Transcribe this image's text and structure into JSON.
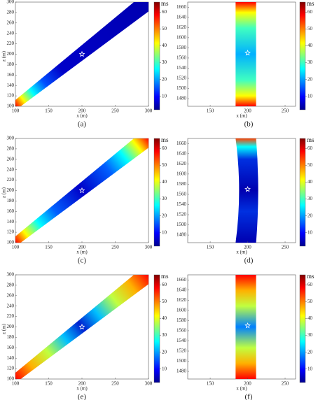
{
  "chart_data": [
    {
      "type": "heatmap",
      "caption": "(a)",
      "xlabel": "x (m)",
      "ylabel": "z (m)",
      "xlim": [
        100,
        300
      ],
      "ylim": [
        100,
        300
      ],
      "xticks": [
        100,
        150,
        200,
        250,
        300
      ],
      "yticks": [
        100,
        120,
        140,
        160,
        180,
        200,
        220,
        240,
        260,
        280,
        300
      ],
      "source": [
        200,
        200
      ],
      "clabel": "ms",
      "clim": [
        2,
        66
      ],
      "cticks": [
        10,
        20,
        30,
        40,
        50,
        60
      ]
    },
    {
      "type": "heatmap",
      "caption": "(b)",
      "xlabel": "x (m)",
      "xlim": [
        120,
        264
      ],
      "ylim": [
        1465,
        1670
      ],
      "xticks": [
        150,
        200,
        250
      ],
      "yticks": [
        1480,
        1500,
        1520,
        1540,
        1560,
        1580,
        1600,
        1620,
        1640,
        1660
      ],
      "source": [
        200,
        1570
      ],
      "clabel": "ms",
      "clim": [
        2,
        66
      ],
      "cticks": [
        10,
        20,
        30,
        40,
        50,
        60
      ]
    },
    {
      "type": "heatmap",
      "caption": "(c)",
      "xlabel": "x (m)",
      "ylabel": "z (m)",
      "xlim": [
        100,
        300
      ],
      "ylim": [
        100,
        300
      ],
      "xticks": [
        100,
        150,
        200,
        250,
        300
      ],
      "yticks": [
        100,
        120,
        140,
        160,
        180,
        200,
        220,
        240,
        260,
        280,
        300
      ],
      "source": [
        200,
        200
      ],
      "clabel": "ms",
      "clim": [
        2,
        66
      ],
      "cticks": [
        10,
        20,
        30,
        40,
        50,
        60
      ]
    },
    {
      "type": "heatmap",
      "caption": "(d)",
      "xlabel": "x (m)",
      "xlim": [
        120,
        264
      ],
      "ylim": [
        1465,
        1670
      ],
      "xticks": [
        150,
        200,
        250
      ],
      "yticks": [
        1480,
        1500,
        1520,
        1540,
        1560,
        1580,
        1600,
        1620,
        1640,
        1660
      ],
      "source": [
        200,
        1570
      ],
      "clabel": "ms",
      "clim": [
        2,
        66
      ],
      "cticks": [
        10,
        20,
        30,
        40,
        50,
        60
      ]
    },
    {
      "type": "heatmap",
      "caption": "(e)",
      "xlabel": "x (m)",
      "ylabel": "z (m)",
      "xlim": [
        100,
        300
      ],
      "ylim": [
        100,
        300
      ],
      "xticks": [
        100,
        150,
        200,
        250,
        300
      ],
      "yticks": [
        100,
        120,
        140,
        160,
        180,
        200,
        220,
        240,
        260,
        280,
        300
      ],
      "source": [
        200,
        200
      ],
      "clabel": "ms",
      "clim": [
        2,
        66
      ],
      "cticks": [
        10,
        20,
        30,
        40,
        50,
        60
      ]
    },
    {
      "type": "heatmap",
      "caption": "(f)",
      "xlabel": "x (m)",
      "xlim": [
        120,
        264
      ],
      "ylim": [
        1465,
        1670
      ],
      "xticks": [
        150,
        200,
        250
      ],
      "yticks": [
        1480,
        1500,
        1520,
        1540,
        1560,
        1580,
        1600,
        1620,
        1640,
        1660
      ],
      "source": [
        200,
        1570
      ],
      "clabel": "ms",
      "clim": [
        2,
        66
      ],
      "cticks": [
        10,
        20,
        30,
        40,
        50,
        60
      ]
    }
  ]
}
